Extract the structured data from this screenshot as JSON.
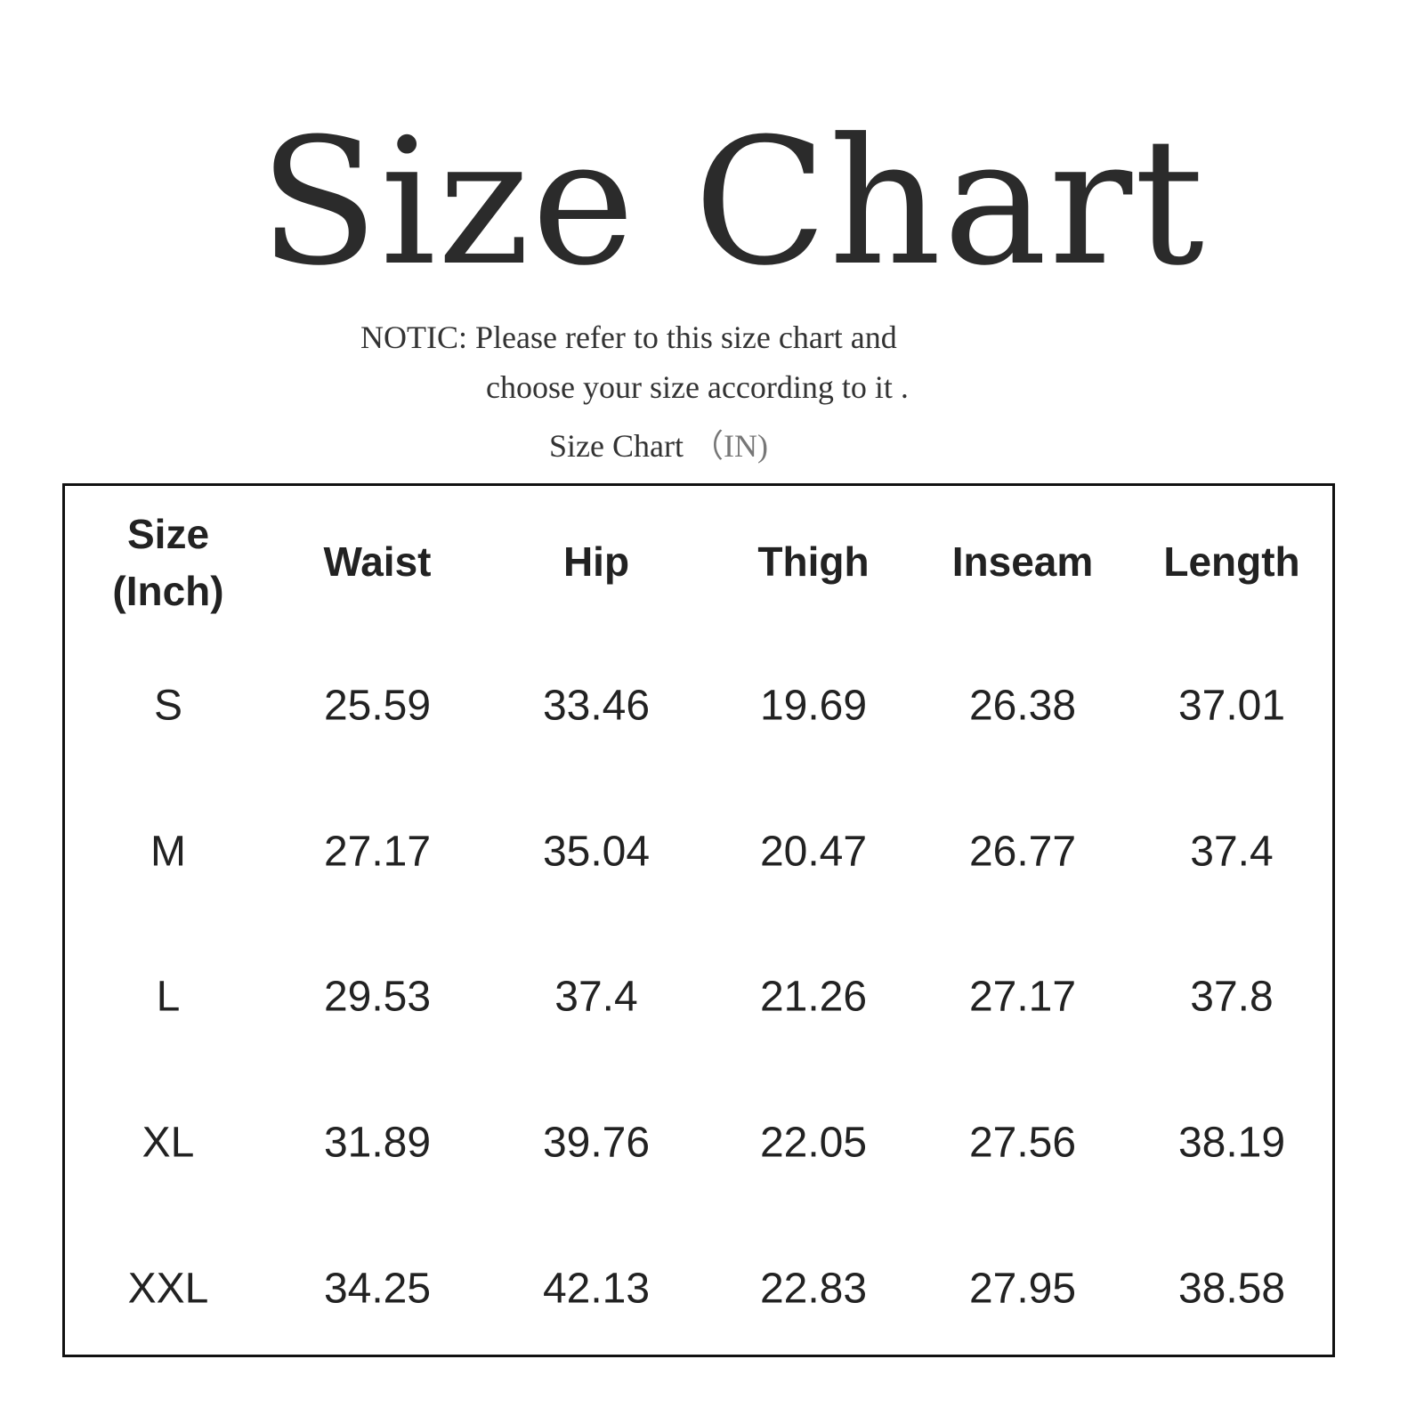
{
  "title": "Size Chart",
  "notice": {
    "line1": "NOTIC: Please refer to this size chart and",
    "line2": "choose your size according to it .",
    "unit_label": "Size Chart",
    "unit": "（IN)"
  },
  "table": {
    "headers": [
      [
        "Size",
        "(Inch)"
      ],
      "Waist",
      "Hip",
      "Thigh",
      "Inseam",
      "Length"
    ],
    "rows": [
      [
        "S",
        "25.59",
        "33.46",
        "19.69",
        "26.38",
        "37.01"
      ],
      [
        "M",
        "27.17",
        "35.04",
        "20.47",
        "26.77",
        "37.4"
      ],
      [
        "L",
        "29.53",
        "37.4",
        "21.26",
        "27.17",
        "37.8"
      ],
      [
        "XL",
        "31.89",
        "39.76",
        "22.05",
        "27.56",
        "38.19"
      ],
      [
        "XXL",
        "34.25",
        "42.13",
        "22.83",
        "27.95",
        "38.58"
      ]
    ]
  }
}
